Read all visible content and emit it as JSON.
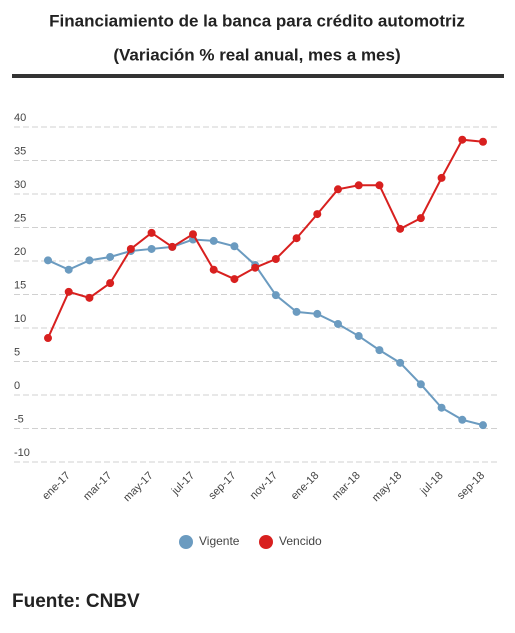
{
  "chart_data": {
    "type": "line",
    "title": "Financiamiento de la banca para crédito automotriz",
    "subtitle": "(Variación % real anual, mes a mes)",
    "source": "Fuente: CNBV",
    "categories": [
      null,
      "ene-17",
      null,
      "mar-17",
      null,
      "may-17",
      null,
      "jul-17",
      null,
      "sep-17",
      null,
      "nov-17",
      null,
      "ene-18",
      null,
      "mar-18",
      null,
      "may-18",
      null,
      "jul-18",
      null,
      "sep-18"
    ],
    "series": [
      {
        "name": "Vigente",
        "color": "#6b9bc0",
        "values": [
          20.1,
          18.7,
          20.1,
          20.6,
          21.5,
          21.8,
          22.1,
          23.2,
          23.0,
          22.2,
          19.4,
          14.9,
          12.4,
          12.1,
          10.6,
          8.8,
          6.7,
          4.8,
          1.6,
          -1.9,
          -3.7,
          -4.5
        ]
      },
      {
        "name": "Vencido",
        "color": "#d8201f",
        "values": [
          8.5,
          15.4,
          14.5,
          16.7,
          21.8,
          24.2,
          22.1,
          24.0,
          18.7,
          17.3,
          19.0,
          20.3,
          23.4,
          27.0,
          30.7,
          31.3,
          31.3,
          24.8,
          26.4,
          32.4,
          38.1,
          37.8
        ]
      }
    ],
    "ylim": [
      -10,
      40
    ],
    "yticks": [
      -10,
      -5,
      0,
      5,
      10,
      15,
      20,
      25,
      30,
      35,
      40
    ],
    "grid": true,
    "legend": "bottom"
  }
}
